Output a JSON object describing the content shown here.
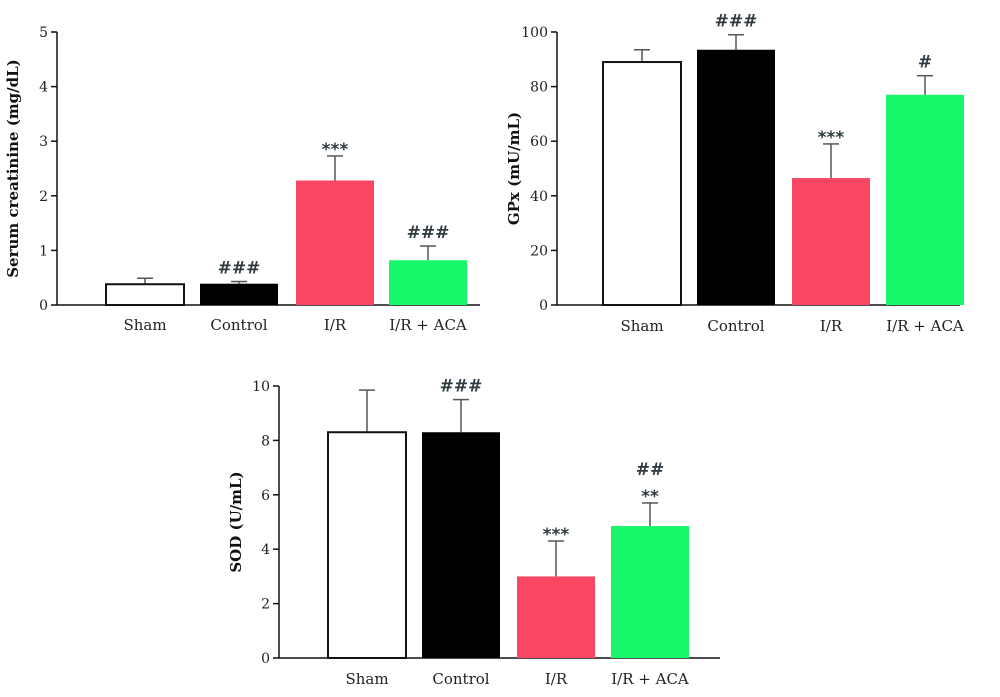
{
  "colors": {
    "Sham": "#ffffff",
    "Control": "#000000",
    "I/R": "#f84663",
    "I/R + ACA": "#18f76a",
    "axis": "#111111",
    "error_bar": "#555555"
  },
  "chart_data": [
    {
      "type": "bar",
      "ylabel": "Serum creatinine (mg/dL)",
      "categories": [
        "Sham",
        "Control",
        "I/R",
        "I/R + ACA"
      ],
      "values": [
        0.38,
        0.39,
        2.28,
        0.82
      ],
      "errors": [
        0.11,
        0.04,
        0.45,
        0.26
      ],
      "annotations": [
        [],
        [
          "###"
        ],
        [
          "***"
        ],
        [
          "###"
        ]
      ],
      "ylim": [
        0,
        5
      ],
      "yticks": [
        "0",
        "1",
        "2",
        "3",
        "4",
        "5"
      ]
    },
    {
      "type": "bar",
      "ylabel": "GPx (mU/mL)",
      "categories": [
        "Sham",
        "Control",
        "I/R",
        "I/R + ACA"
      ],
      "values": [
        89,
        93.5,
        46.5,
        77
      ],
      "errors": [
        4.5,
        5.5,
        12.5,
        7
      ],
      "annotations": [
        [],
        [
          "###"
        ],
        [
          "***"
        ],
        [
          "#"
        ]
      ],
      "ylim": [
        0,
        100
      ],
      "yticks": [
        "0",
        "20",
        "40",
        "60",
        "80",
        "100"
      ]
    },
    {
      "type": "bar",
      "ylabel": "SOD (U/mL)",
      "categories": [
        "Sham",
        "Control",
        "I/R",
        "I/R + ACA"
      ],
      "values": [
        8.3,
        8.3,
        3.0,
        4.85
      ],
      "errors": [
        1.55,
        1.2,
        1.3,
        0.85
      ],
      "annotations": [
        [],
        [
          "###"
        ],
        [
          "***"
        ],
        [
          "##",
          "**"
        ]
      ],
      "ylim": [
        0,
        10
      ],
      "yticks": [
        "0",
        "2",
        "4",
        "6",
        "8",
        "10"
      ]
    }
  ]
}
